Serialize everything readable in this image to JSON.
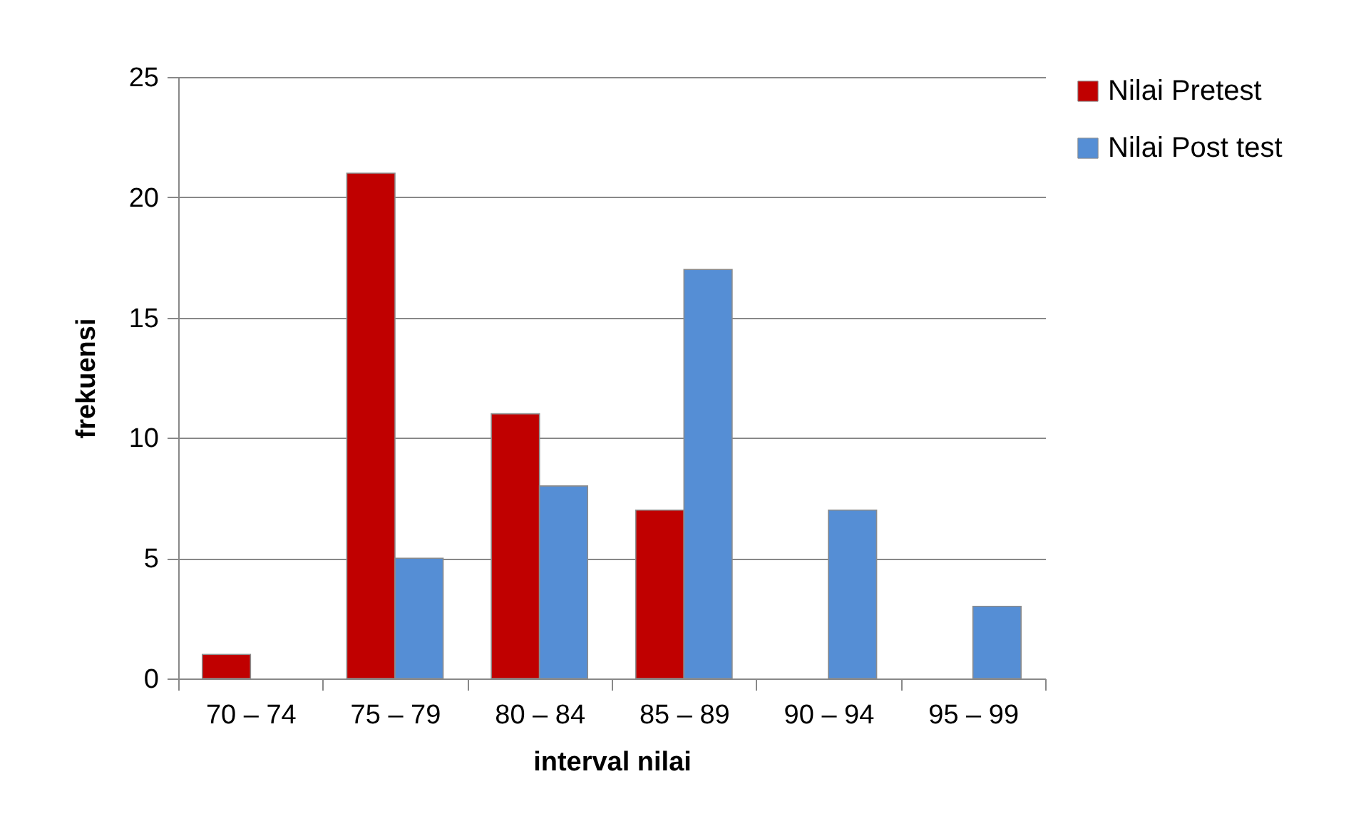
{
  "chart_data": {
    "type": "bar",
    "xlabel": "interval nilai",
    "ylabel": "frekuensi",
    "categories": [
      "70 – 74",
      "75 – 79",
      "80 – 84",
      "85 – 89",
      "90 – 94",
      "95 – 99"
    ],
    "series": [
      {
        "name": "Nilai Pretest",
        "color": "#c00000",
        "values": [
          1,
          21,
          11,
          7,
          null,
          null
        ]
      },
      {
        "name": "Nilai Post test",
        "color": "#558ed5",
        "values": [
          null,
          5,
          8,
          17,
          7,
          3
        ]
      }
    ],
    "ylim": [
      0,
      25
    ],
    "yticks": [
      0,
      5,
      10,
      15,
      20,
      25
    ],
    "grid": "y",
    "legend": "right"
  }
}
